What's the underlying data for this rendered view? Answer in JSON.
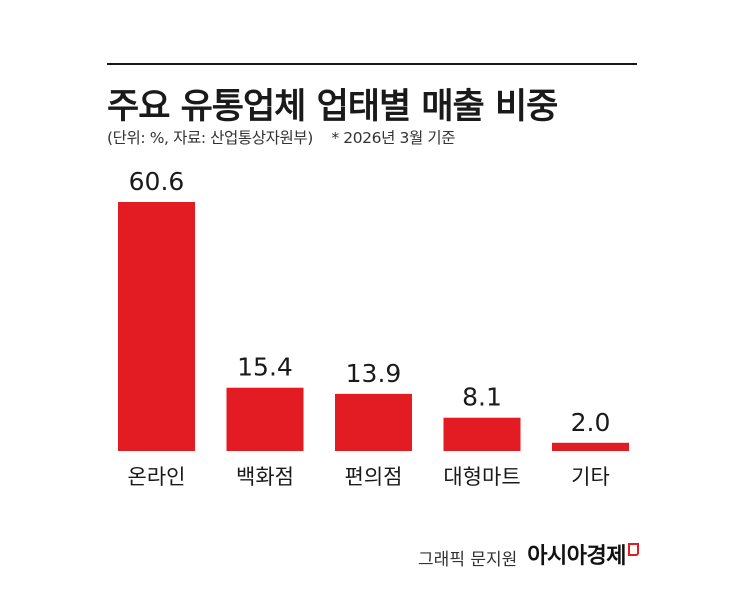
{
  "header": {
    "title": "주요 유통업체 업태별 매출 비중",
    "unit_source": "(단위: %, 자료: 산업통상자원부)",
    "note": "* 2026년 3월 기준"
  },
  "footer": {
    "designer": "그래픽 문지원",
    "brand": "아시아경제"
  },
  "colors": {
    "bar": "#e31b23",
    "text": "#1a1a1a"
  },
  "chart_data": {
    "type": "bar",
    "title": "주요 유통업체 업태별 매출 비중",
    "subtitle": "(단위: %, 자료: 산업통상자원부)",
    "categories": [
      "온라인",
      "백화점",
      "편의점",
      "대형마트",
      "기타"
    ],
    "values": [
      60.6,
      15.4,
      13.9,
      8.1,
      2.0
    ],
    "value_labels": [
      "60.6",
      "15.4",
      "13.9",
      "8.1",
      "2.0"
    ],
    "unit": "%",
    "xlabel": "",
    "ylabel": "",
    "ylim": [
      0,
      60.6
    ],
    "grid": false,
    "legend": "none"
  }
}
